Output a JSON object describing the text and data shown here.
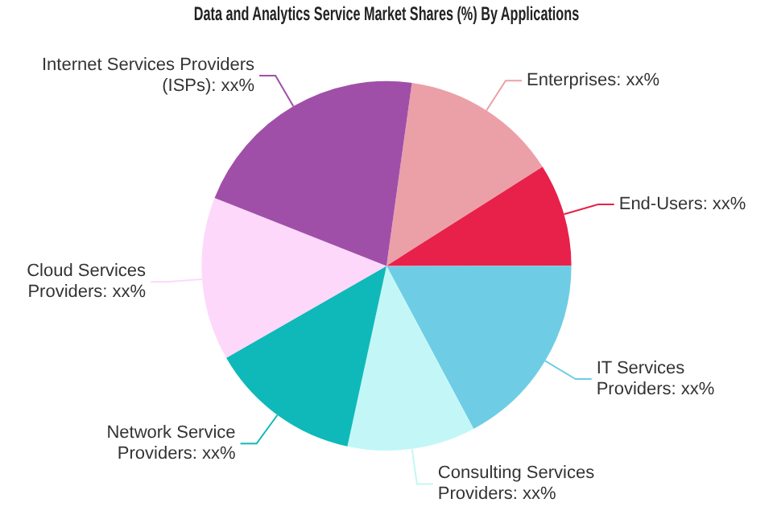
{
  "chart_data": {
    "type": "pie",
    "title": "Data and Analytics Service Market Shares (%) By Applications",
    "categories": [
      "Enterprises",
      "End-Users",
      "IT Services Providers",
      "Consulting Services Providers",
      "Network Service Providers",
      "Cloud Services Providers",
      "Internet Services Providers (ISPs)"
    ],
    "values": [
      13.8,
      9.0,
      17.2,
      11.2,
      13.3,
      14.3,
      21.2
    ],
    "colors": [
      "#eba0a8",
      "#e8214a",
      "#6ecde4",
      "#c3f7f7",
      "#10b9b9",
      "#fdd8fb",
      "#a04fa8"
    ],
    "value_labels": [
      "xx%",
      "xx%",
      "xx%",
      "xx%",
      "xx%",
      "xx%",
      "xx%"
    ],
    "legend": false
  }
}
